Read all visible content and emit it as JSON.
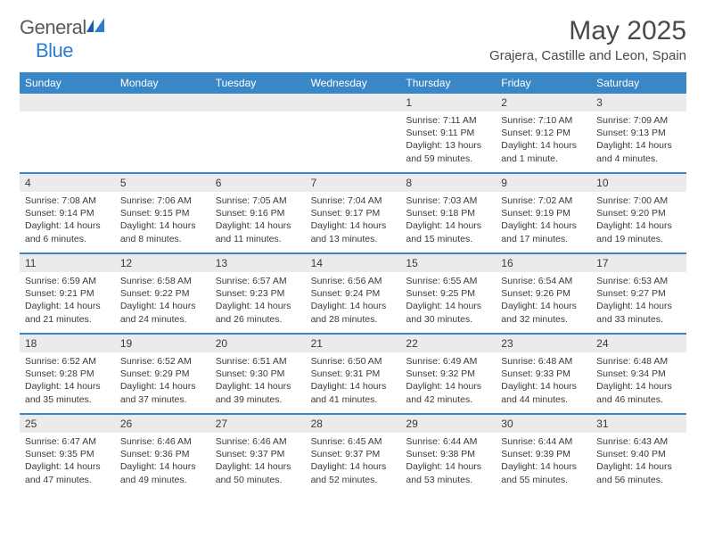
{
  "logo": {
    "word1": "General",
    "word2": "Blue"
  },
  "title": "May 2025",
  "location": "Grajera, Castille and Leon, Spain",
  "header_bg": "#3a87c8",
  "daynum_bg": "#ebebeb",
  "rule_color": "#3a87c8",
  "weekdays": [
    "Sunday",
    "Monday",
    "Tuesday",
    "Wednesday",
    "Thursday",
    "Friday",
    "Saturday"
  ],
  "weeks": [
    [
      {
        "blank": true
      },
      {
        "blank": true
      },
      {
        "blank": true
      },
      {
        "blank": true
      },
      {
        "n": "1",
        "sr": "7:11 AM",
        "ss": "9:11 PM",
        "dl": "13 hours and 59 minutes."
      },
      {
        "n": "2",
        "sr": "7:10 AM",
        "ss": "9:12 PM",
        "dl": "14 hours and 1 minute."
      },
      {
        "n": "3",
        "sr": "7:09 AM",
        "ss": "9:13 PM",
        "dl": "14 hours and 4 minutes."
      }
    ],
    [
      {
        "n": "4",
        "sr": "7:08 AM",
        "ss": "9:14 PM",
        "dl": "14 hours and 6 minutes."
      },
      {
        "n": "5",
        "sr": "7:06 AM",
        "ss": "9:15 PM",
        "dl": "14 hours and 8 minutes."
      },
      {
        "n": "6",
        "sr": "7:05 AM",
        "ss": "9:16 PM",
        "dl": "14 hours and 11 minutes."
      },
      {
        "n": "7",
        "sr": "7:04 AM",
        "ss": "9:17 PM",
        "dl": "14 hours and 13 minutes."
      },
      {
        "n": "8",
        "sr": "7:03 AM",
        "ss": "9:18 PM",
        "dl": "14 hours and 15 minutes."
      },
      {
        "n": "9",
        "sr": "7:02 AM",
        "ss": "9:19 PM",
        "dl": "14 hours and 17 minutes."
      },
      {
        "n": "10",
        "sr": "7:00 AM",
        "ss": "9:20 PM",
        "dl": "14 hours and 19 minutes."
      }
    ],
    [
      {
        "n": "11",
        "sr": "6:59 AM",
        "ss": "9:21 PM",
        "dl": "14 hours and 21 minutes."
      },
      {
        "n": "12",
        "sr": "6:58 AM",
        "ss": "9:22 PM",
        "dl": "14 hours and 24 minutes."
      },
      {
        "n": "13",
        "sr": "6:57 AM",
        "ss": "9:23 PM",
        "dl": "14 hours and 26 minutes."
      },
      {
        "n": "14",
        "sr": "6:56 AM",
        "ss": "9:24 PM",
        "dl": "14 hours and 28 minutes."
      },
      {
        "n": "15",
        "sr": "6:55 AM",
        "ss": "9:25 PM",
        "dl": "14 hours and 30 minutes."
      },
      {
        "n": "16",
        "sr": "6:54 AM",
        "ss": "9:26 PM",
        "dl": "14 hours and 32 minutes."
      },
      {
        "n": "17",
        "sr": "6:53 AM",
        "ss": "9:27 PM",
        "dl": "14 hours and 33 minutes."
      }
    ],
    [
      {
        "n": "18",
        "sr": "6:52 AM",
        "ss": "9:28 PM",
        "dl": "14 hours and 35 minutes."
      },
      {
        "n": "19",
        "sr": "6:52 AM",
        "ss": "9:29 PM",
        "dl": "14 hours and 37 minutes."
      },
      {
        "n": "20",
        "sr": "6:51 AM",
        "ss": "9:30 PM",
        "dl": "14 hours and 39 minutes."
      },
      {
        "n": "21",
        "sr": "6:50 AM",
        "ss": "9:31 PM",
        "dl": "14 hours and 41 minutes."
      },
      {
        "n": "22",
        "sr": "6:49 AM",
        "ss": "9:32 PM",
        "dl": "14 hours and 42 minutes."
      },
      {
        "n": "23",
        "sr": "6:48 AM",
        "ss": "9:33 PM",
        "dl": "14 hours and 44 minutes."
      },
      {
        "n": "24",
        "sr": "6:48 AM",
        "ss": "9:34 PM",
        "dl": "14 hours and 46 minutes."
      }
    ],
    [
      {
        "n": "25",
        "sr": "6:47 AM",
        "ss": "9:35 PM",
        "dl": "14 hours and 47 minutes."
      },
      {
        "n": "26",
        "sr": "6:46 AM",
        "ss": "9:36 PM",
        "dl": "14 hours and 49 minutes."
      },
      {
        "n": "27",
        "sr": "6:46 AM",
        "ss": "9:37 PM",
        "dl": "14 hours and 50 minutes."
      },
      {
        "n": "28",
        "sr": "6:45 AM",
        "ss": "9:37 PM",
        "dl": "14 hours and 52 minutes."
      },
      {
        "n": "29",
        "sr": "6:44 AM",
        "ss": "9:38 PM",
        "dl": "14 hours and 53 minutes."
      },
      {
        "n": "30",
        "sr": "6:44 AM",
        "ss": "9:39 PM",
        "dl": "14 hours and 55 minutes."
      },
      {
        "n": "31",
        "sr": "6:43 AM",
        "ss": "9:40 PM",
        "dl": "14 hours and 56 minutes."
      }
    ]
  ],
  "labels": {
    "sunrise": "Sunrise: ",
    "sunset": "Sunset: ",
    "daylight": "Daylight: "
  }
}
